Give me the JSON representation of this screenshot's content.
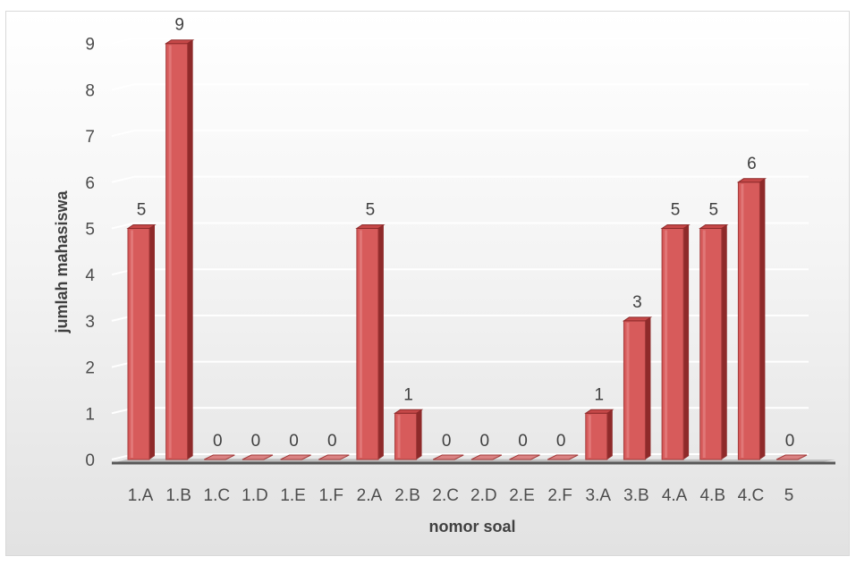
{
  "chart_data": {
    "type": "bar",
    "categories": [
      "1.A",
      "1.B",
      "1.C",
      "1.D",
      "1.E",
      "1.F",
      "2.A",
      "2.B",
      "2.C",
      "2.D",
      "2.E",
      "2.F",
      "3.A",
      "3.B",
      "4.A",
      "4.B",
      "4.C",
      "5"
    ],
    "values": [
      5,
      9,
      0,
      0,
      0,
      0,
      5,
      1,
      0,
      0,
      0,
      0,
      1,
      3,
      5,
      5,
      6,
      0
    ],
    "xlabel": "nomor soal",
    "ylabel": "jumlah mahasiswa",
    "ylim": [
      0,
      9
    ],
    "yticks": [
      0,
      1,
      2,
      3,
      4,
      5,
      6,
      7,
      8,
      9
    ],
    "grid": true,
    "style": "3d-column",
    "colors": {
      "bar_front": "#d75b5b",
      "bar_side": "#8e2a2a",
      "bar_top": "#c54848",
      "grid": "#ffffff",
      "floor": "#595959"
    }
  }
}
